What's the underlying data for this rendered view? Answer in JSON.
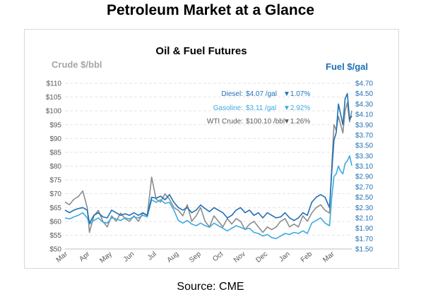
{
  "page_title": "Petroleum Market at a Glance",
  "source_note": "Source: CME",
  "chart_data": {
    "type": "line",
    "title": "Oil & Fuel Futures",
    "ylabel_left": "Crude $/bbl",
    "ylabel_right": "Fuel $/gal",
    "colors": {
      "diesel": "#1f6fb5",
      "gasoline": "#3ea9e0",
      "crude": "#8c8c8c",
      "left_axis_label": "#a6a6a6",
      "right_axis_label": "#1f6fb5"
    },
    "grid": true,
    "legend_position": "top-right",
    "ylim_left": [
      50,
      110
    ],
    "yticks_left": [
      "$50",
      "$55",
      "$60",
      "$65",
      "$70",
      "$75",
      "$80",
      "$85",
      "$90",
      "$95",
      "$100",
      "$105",
      "$110"
    ],
    "ylim_right": [
      1.5,
      4.7
    ],
    "yticks_right": [
      "$1.50",
      "$1.70",
      "$1.90",
      "$2.10",
      "$2.30",
      "$2.50",
      "$2.70",
      "$2.90",
      "$3.10",
      "$3.30",
      "$3.50",
      "$3.70",
      "$3.90",
      "$4.10",
      "$4.30",
      "$4.50",
      "$4.70"
    ],
    "categories": [
      "Mar",
      "Apr",
      "May",
      "Jun",
      "Jul",
      "Aug",
      "Sep",
      "Oct",
      "Nov",
      "Dec",
      "Jan",
      "Feb",
      "Mar"
    ],
    "xlim": [
      0,
      12.9
    ],
    "legend": [
      {
        "label": "Diesel:",
        "value": "$4.07 /gal",
        "change": "▼1.07%",
        "color": "#1f6fb5"
      },
      {
        "label": "Gasoline:",
        "value": "$3.11 /gal",
        "change": "▼2.92%",
        "color": "#3ea9e0"
      },
      {
        "label": "WTI Crude:",
        "value": "$100.10 /bbl",
        "change": "▼1.26%",
        "color": "#595959"
      }
    ],
    "series": [
      {
        "name": "Diesel",
        "axis": "right",
        "x": [
          0,
          0.2,
          0.4,
          0.6,
          0.8,
          1,
          1.1,
          1.3,
          1.5,
          1.7,
          1.9,
          2.1,
          2.3,
          2.5,
          2.7,
          2.9,
          3.1,
          3.3,
          3.5,
          3.7,
          3.9,
          4.1,
          4.3,
          4.5,
          4.7,
          4.9,
          5.1,
          5.3,
          5.5,
          5.7,
          5.9,
          6.1,
          6.3,
          6.5,
          6.7,
          6.9,
          7.1,
          7.3,
          7.5,
          7.7,
          7.9,
          8.1,
          8.3,
          8.5,
          8.7,
          8.9,
          9.1,
          9.3,
          9.5,
          9.7,
          9.9,
          10.1,
          10.3,
          10.5,
          10.7,
          10.9,
          11.1,
          11.3,
          11.5,
          11.7,
          11.9,
          12.0,
          12.1,
          12.2,
          12.3,
          12.4,
          12.5,
          12.6,
          12.7,
          12.8,
          12.9
        ],
        "y": [
          2.25,
          2.2,
          2.25,
          2.28,
          2.3,
          2.25,
          2.0,
          2.15,
          2.2,
          2.12,
          2.1,
          2.25,
          2.2,
          2.15,
          2.18,
          2.15,
          2.2,
          2.15,
          2.2,
          2.15,
          2.5,
          2.48,
          2.52,
          2.45,
          2.55,
          2.4,
          2.3,
          2.25,
          2.3,
          2.2,
          2.25,
          2.35,
          2.28,
          2.22,
          2.3,
          2.25,
          2.2,
          2.1,
          2.15,
          2.25,
          2.3,
          2.2,
          2.25,
          2.15,
          2.2,
          2.1,
          2.2,
          2.15,
          2.1,
          2.12,
          2.2,
          2.1,
          2.05,
          2.1,
          2.2,
          2.15,
          2.4,
          2.5,
          2.55,
          2.5,
          2.3,
          3.0,
          3.6,
          3.75,
          4.3,
          4.1,
          3.9,
          4.4,
          4.5,
          4.0,
          4.07
        ]
      },
      {
        "name": "Gasoline",
        "axis": "right",
        "x": [
          0,
          0.2,
          0.4,
          0.6,
          0.8,
          1,
          1.1,
          1.3,
          1.5,
          1.7,
          1.9,
          2.1,
          2.3,
          2.5,
          2.7,
          2.9,
          3.1,
          3.3,
          3.5,
          3.7,
          3.9,
          4.1,
          4.3,
          4.5,
          4.7,
          4.9,
          5.1,
          5.3,
          5.5,
          5.7,
          5.9,
          6.1,
          6.3,
          6.5,
          6.7,
          6.9,
          7.1,
          7.3,
          7.5,
          7.7,
          7.9,
          8.1,
          8.3,
          8.5,
          8.7,
          8.9,
          9.1,
          9.3,
          9.5,
          9.7,
          9.9,
          10.1,
          10.3,
          10.5,
          10.7,
          10.9,
          11.1,
          11.3,
          11.5,
          11.7,
          11.9,
          12.0,
          12.1,
          12.2,
          12.3,
          12.4,
          12.5,
          12.6,
          12.7,
          12.8,
          12.9
        ],
        "y": [
          2.1,
          2.08,
          2.12,
          2.15,
          2.2,
          2.1,
          1.98,
          2.05,
          2.1,
          2.02,
          2.0,
          2.1,
          2.08,
          2.05,
          2.1,
          2.08,
          2.12,
          2.1,
          2.15,
          2.12,
          2.45,
          2.4,
          2.45,
          2.38,
          2.4,
          2.25,
          2.05,
          2.0,
          2.05,
          1.98,
          1.95,
          2.0,
          1.95,
          1.92,
          2.0,
          1.95,
          1.9,
          1.85,
          1.9,
          1.95,
          1.92,
          1.88,
          1.9,
          1.82,
          1.8,
          1.75,
          1.78,
          1.72,
          1.7,
          1.75,
          1.8,
          1.78,
          1.82,
          1.8,
          1.85,
          1.8,
          2.0,
          2.05,
          2.1,
          2.0,
          1.95,
          2.5,
          2.9,
          2.95,
          3.1,
          3.0,
          2.95,
          3.15,
          3.2,
          3.3,
          3.11
        ]
      },
      {
        "name": "WTI Crude",
        "axis": "left",
        "x": [
          0,
          0.2,
          0.4,
          0.6,
          0.8,
          1,
          1.1,
          1.3,
          1.5,
          1.7,
          1.9,
          2.1,
          2.3,
          2.5,
          2.7,
          2.9,
          3.1,
          3.3,
          3.5,
          3.7,
          3.9,
          4.1,
          4.3,
          4.5,
          4.7,
          4.9,
          5.1,
          5.3,
          5.5,
          5.7,
          5.9,
          6.1,
          6.3,
          6.5,
          6.7,
          6.9,
          7.1,
          7.3,
          7.5,
          7.7,
          7.9,
          8.1,
          8.3,
          8.5,
          8.7,
          8.9,
          9.1,
          9.3,
          9.5,
          9.7,
          9.9,
          10.1,
          10.3,
          10.5,
          10.7,
          10.9,
          11.1,
          11.3,
          11.5,
          11.7,
          11.9,
          12.0,
          12.1,
          12.2,
          12.3,
          12.4,
          12.5,
          12.6,
          12.7,
          12.8,
          12.9
        ],
        "y": [
          67,
          66,
          68,
          69,
          71,
          65,
          56,
          62,
          64,
          60,
          58,
          62,
          60,
          63,
          61,
          60,
          62,
          60,
          63,
          62,
          76,
          68,
          67,
          70,
          68,
          65,
          64,
          62,
          66,
          60,
          62,
          65,
          60,
          58,
          62,
          60,
          58,
          61,
          59,
          61,
          60,
          57,
          59,
          60,
          58,
          56,
          58,
          57,
          58,
          60,
          61,
          58,
          59,
          58,
          62,
          60,
          63,
          65,
          66,
          64,
          63,
          80,
          95,
          93,
          98,
          95,
          92,
          100,
          103,
          96,
          100.1
        ]
      }
    ]
  }
}
